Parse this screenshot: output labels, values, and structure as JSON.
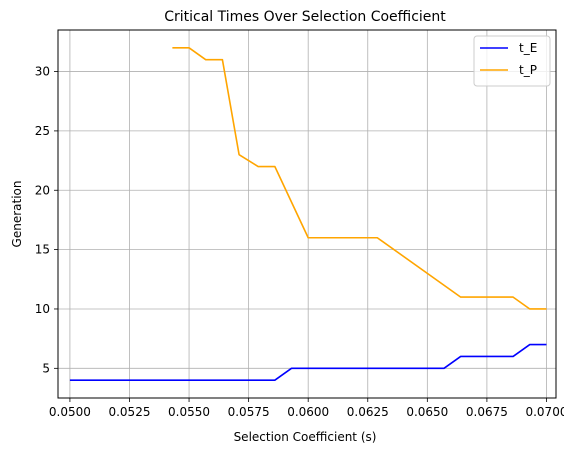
{
  "chart_data": {
    "type": "line",
    "title": "Critical Times Over Selection Coefficient",
    "xlabel": "Selection Coefficient (s)",
    "ylabel": "Generation",
    "xlim": [
      0.0495,
      0.0704
    ],
    "ylim": [
      2.5,
      33.5
    ],
    "xticks": [
      0.05,
      0.0525,
      0.055,
      0.0575,
      0.06,
      0.0625,
      0.065,
      0.0675,
      0.07
    ],
    "xtick_labels": [
      "0.0500",
      "0.0525",
      "0.0550",
      "0.0575",
      "0.0600",
      "0.0625",
      "0.0650",
      "0.0675",
      "0.0700"
    ],
    "yticks": [
      5,
      10,
      15,
      20,
      25,
      30
    ],
    "ytick_labels": [
      "5",
      "10",
      "15",
      "20",
      "25",
      "30"
    ],
    "grid": true,
    "legend_position": "top-right",
    "series": [
      {
        "name": "t_E",
        "color": "#0000ff",
        "x": [
          0.05,
          0.0586,
          0.0593,
          0.0657,
          0.0664,
          0.0686,
          0.0693,
          0.07
        ],
        "y": [
          4,
          4,
          5,
          5,
          6,
          6,
          7,
          7
        ]
      },
      {
        "name": "t_P",
        "color": "#ffa500",
        "x": [
          0.0543,
          0.055,
          0.0557,
          0.0564,
          0.0571,
          0.0579,
          0.0586,
          0.06,
          0.0629,
          0.0664,
          0.0686,
          0.0693,
          0.07
        ],
        "y": [
          32,
          32,
          31,
          31,
          23,
          22,
          22,
          16,
          16,
          11,
          11,
          10,
          10
        ]
      }
    ]
  }
}
